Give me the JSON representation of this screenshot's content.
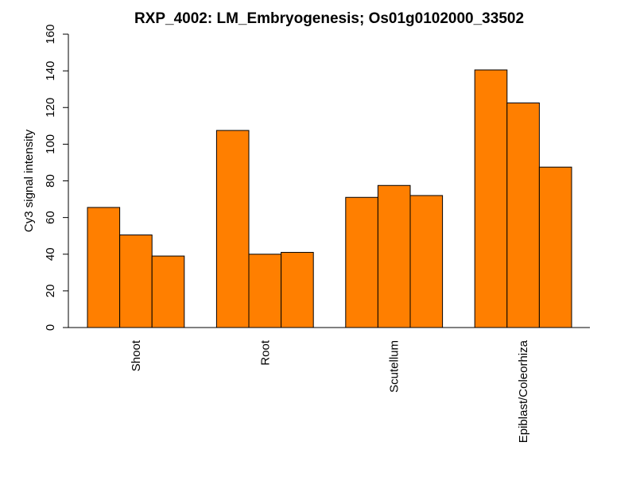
{
  "chart_data": {
    "type": "bar",
    "title": "RXP_4002: LM_Embryogenesis; Os01g0102000_33502",
    "xlabel": "",
    "ylabel": "Cy3 signal intensity",
    "categories": [
      "Shoot",
      "Root",
      "Scutellum",
      "Epiblast/Coleorhiza"
    ],
    "values": [
      [
        65.5,
        50.5,
        39
      ],
      [
        107.5,
        40,
        41
      ],
      [
        71,
        77.5,
        72
      ],
      [
        140.5,
        122.5,
        87.5
      ]
    ],
    "yticks": [
      "0",
      "20",
      "40",
      "60",
      "80",
      "100",
      "120",
      "140",
      "160"
    ],
    "ylim": [
      0,
      160
    ],
    "bar_color": "#FF7F00",
    "bar_stroke": "#000000",
    "grid": false,
    "legend": "none"
  }
}
